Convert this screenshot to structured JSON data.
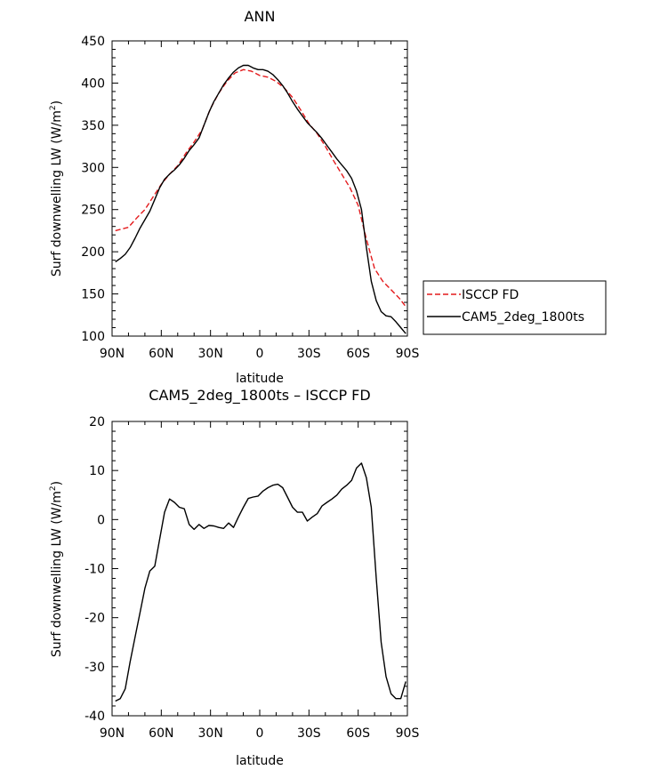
{
  "chart_data": [
    {
      "type": "line",
      "title": "ANN",
      "xlabel": "latitude",
      "ylabel": "Surf downwelling LW (W/m",
      "ylabel_sup": "2",
      "ylabel_close": ")",
      "xlim": [
        -90,
        90
      ],
      "ylim": [
        100,
        450
      ],
      "x_ticks": [
        -90,
        -60,
        -30,
        0,
        30,
        60,
        90
      ],
      "x_tick_labels": [
        "90N",
        "60N",
        "30N",
        "0",
        "30S",
        "60S",
        "90S"
      ],
      "y_ticks": [
        100,
        150,
        200,
        250,
        300,
        350,
        400,
        450
      ],
      "y_tick_labels": [
        "100",
        "150",
        "200",
        "250",
        "300",
        "350",
        "400",
        "450"
      ],
      "legend": "outside-right",
      "series": [
        {
          "name": "ISCCP FD",
          "color": "#e41a1c",
          "dash": true,
          "x": [
            -88,
            -80,
            -75,
            -70,
            -65,
            -60,
            -55,
            -50,
            -45,
            -40,
            -35,
            -30,
            -25,
            -20,
            -15,
            -10,
            -5,
            0,
            5,
            10,
            15,
            20,
            25,
            30,
            35,
            40,
            45,
            50,
            55,
            60,
            65,
            70,
            75,
            80,
            85,
            89
          ],
          "y": [
            225,
            229,
            240,
            250,
            265,
            280,
            292,
            302,
            317,
            330,
            345,
            370,
            388,
            402,
            412,
            416,
            414,
            409,
            407,
            402,
            394,
            383,
            368,
            352,
            340,
            325,
            308,
            292,
            276,
            255,
            215,
            180,
            165,
            155,
            145,
            135
          ]
        },
        {
          "name": "CAM5_2deg_1800ts",
          "color": "#000000",
          "dash": false,
          "x": [
            -88,
            -85,
            -82,
            -79,
            -76,
            -73,
            -70,
            -67,
            -64,
            -61,
            -58,
            -55,
            -52,
            -49,
            -46,
            -43,
            -40,
            -37,
            -34,
            -31,
            -28,
            -25,
            -22,
            -19,
            -16,
            -13,
            -10,
            -7,
            -4,
            -1,
            2,
            5,
            8,
            11,
            14,
            17,
            20,
            23,
            26,
            29,
            32,
            35,
            38,
            41,
            44,
            47,
            50,
            53,
            56,
            59,
            62,
            65,
            68,
            71,
            74,
            77,
            80,
            83,
            86,
            89
          ],
          "y": [
            188,
            192,
            197,
            205,
            216,
            228,
            238,
            248,
            262,
            276,
            286,
            292,
            297,
            303,
            311,
            320,
            327,
            335,
            350,
            365,
            378,
            388,
            398,
            406,
            413,
            418,
            421,
            421,
            418,
            416,
            416,
            414,
            410,
            404,
            397,
            388,
            378,
            369,
            361,
            353,
            347,
            341,
            334,
            326,
            318,
            310,
            303,
            296,
            287,
            272,
            250,
            205,
            165,
            142,
            129,
            124,
            123,
            117,
            110,
            103
          ]
        }
      ]
    },
    {
      "type": "line",
      "title": "CAM5_2deg_1800ts – ISCCP FD",
      "xlabel": "latitude",
      "ylabel": "Surf downwelling LW (W/m",
      "ylabel_sup": "2",
      "ylabel_close": ")",
      "xlim": [
        -90,
        90
      ],
      "ylim": [
        -40,
        20
      ],
      "x_ticks": [
        -90,
        -60,
        -30,
        0,
        30,
        60,
        90
      ],
      "x_tick_labels": [
        "90N",
        "60N",
        "30N",
        "0",
        "30S",
        "60S",
        "90S"
      ],
      "y_ticks": [
        -40,
        -30,
        -20,
        -10,
        0,
        10,
        20
      ],
      "y_tick_labels": [
        "-40",
        "-30",
        "-20",
        "-10",
        "0",
        "10",
        "20"
      ],
      "series": [
        {
          "color": "#000000",
          "dash": false,
          "x": [
            -88,
            -85,
            -82,
            -79,
            -76,
            -73,
            -70,
            -67,
            -64,
            -61,
            -58,
            -55,
            -52,
            -49,
            -46,
            -43,
            -40,
            -37,
            -34,
            -31,
            -28,
            -25,
            -22,
            -19,
            -16,
            -13,
            -10,
            -7,
            -4,
            -1,
            2,
            5,
            8,
            11,
            14,
            17,
            20,
            23,
            26,
            29,
            32,
            35,
            38,
            41,
            44,
            47,
            50,
            53,
            56,
            59,
            62,
            65,
            68,
            71,
            74,
            77,
            80,
            83,
            86,
            89
          ],
          "y": [
            -37,
            -36.5,
            -34.5,
            -29,
            -24,
            -19,
            -14,
            -10.5,
            -9.5,
            -4,
            1.5,
            4.2,
            3.5,
            2.5,
            2.2,
            -1,
            -2,
            -1,
            -1.8,
            -1.2,
            -1.3,
            -1.6,
            -1.8,
            -0.7,
            -1.6,
            0.5,
            2.5,
            4.3,
            4.6,
            4.8,
            5.8,
            6.5,
            7,
            7.2,
            6.5,
            4.5,
            2.5,
            1.5,
            1.5,
            -0.3,
            0.5,
            1.2,
            2.8,
            3.5,
            4.2,
            5,
            6.2,
            7,
            8,
            10.5,
            11.5,
            8.5,
            2.5,
            -12,
            -25,
            -32,
            -35.5,
            -36.5,
            -36.5,
            -33
          ]
        }
      ]
    }
  ]
}
